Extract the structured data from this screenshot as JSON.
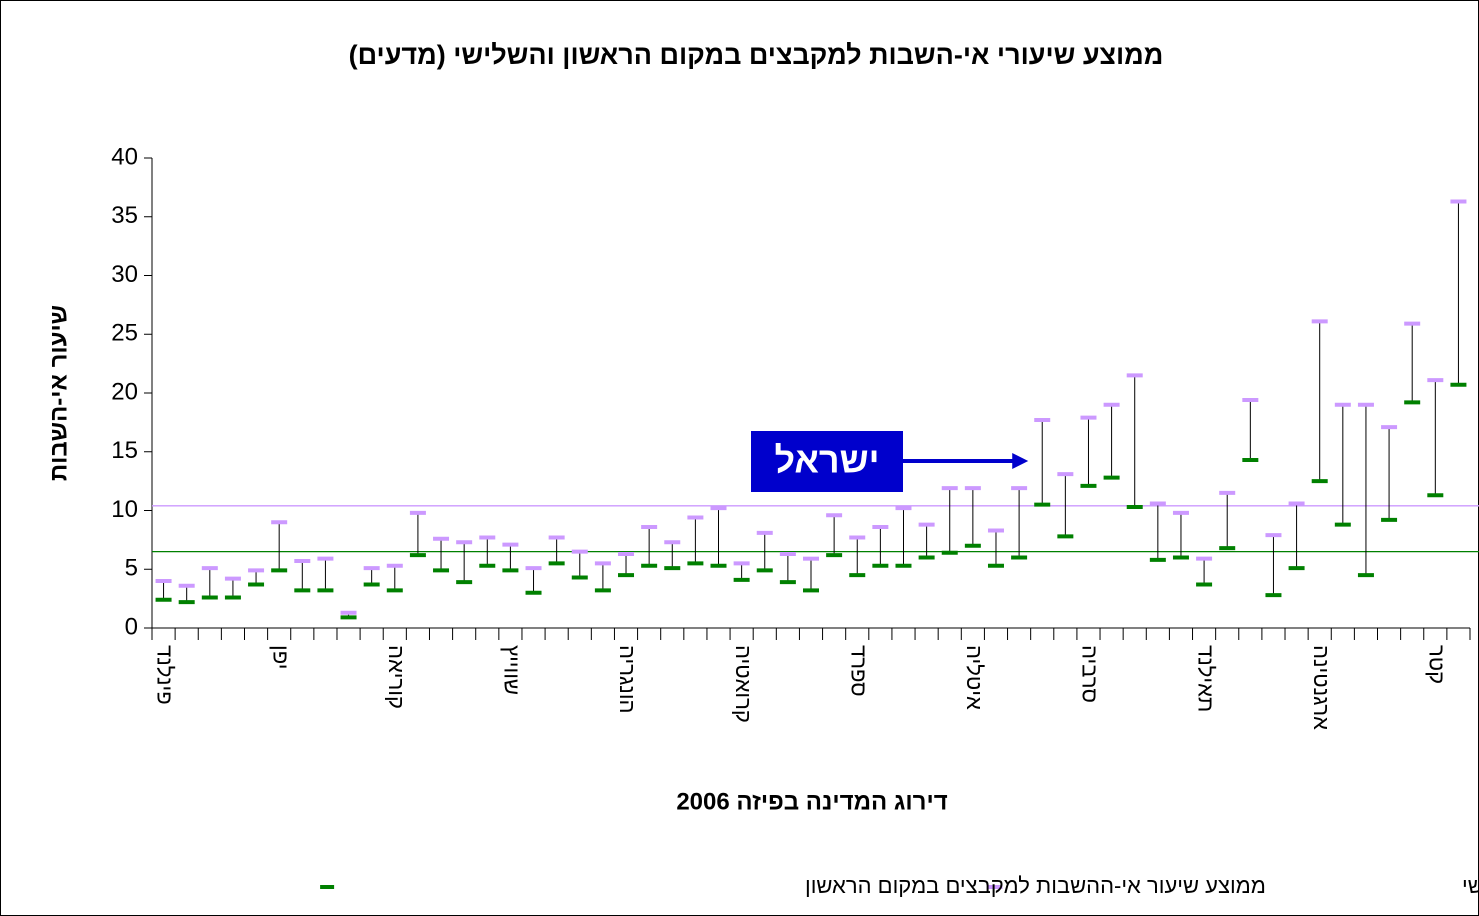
{
  "chart_data": {
    "type": "highlow",
    "title": "ממוצע שיעורי אי-השבות למקבצים במקום הראשון והשלישי (מדעים)",
    "x_label": "דירוג המדינה בפיזה 2006",
    "y_label": "שיעור אי-השבות",
    "annotation": {
      "text": "ישראל",
      "category_index": 38,
      "color": "#0000cc"
    },
    "categories": [
      "פינלנד",
      null,
      null,
      null,
      null,
      "יפן",
      null,
      null,
      null,
      null,
      "קוריאה",
      null,
      null,
      null,
      null,
      "שווייץ",
      null,
      null,
      null,
      null,
      "הונגריה",
      null,
      null,
      null,
      null,
      "קרואטיה",
      null,
      null,
      null,
      null,
      "ספרד",
      null,
      null,
      null,
      null,
      "איטליה",
      null,
      null,
      null,
      null,
      "סרביה",
      null,
      null,
      null,
      null,
      "תאילנד",
      null,
      null,
      null,
      null,
      "ארגנטינה",
      null,
      null,
      null,
      null,
      "קטר",
      null
    ],
    "series": [
      {
        "name": "ממוצע שיעור אי-השבות למקבצים במקום השלישי",
        "color": "#cc99ff",
        "values": [
          4.0,
          3.6,
          5.1,
          4.2,
          4.9,
          9.0,
          5.7,
          5.9,
          1.3,
          5.1,
          5.3,
          9.8,
          7.6,
          7.3,
          7.7,
          7.1,
          5.1,
          7.7,
          6.5,
          5.5,
          6.3,
          8.6,
          7.3,
          9.4,
          10.2,
          5.5,
          8.1,
          6.3,
          5.9,
          9.6,
          7.7,
          8.6,
          10.2,
          8.8,
          11.9,
          11.9,
          8.3,
          11.9,
          17.7,
          13.1,
          17.9,
          19.0,
          21.5,
          10.6,
          9.8,
          5.9,
          11.5,
          19.4,
          7.9,
          10.6,
          26.1,
          19.0,
          19.0,
          17.1,
          25.9,
          21.1,
          36.3
        ]
      },
      {
        "name": "ממוצע שיעור אי-ההשבות למקבצים במקום הראשון",
        "color": "#008000",
        "values": [
          2.4,
          2.2,
          2.6,
          2.6,
          3.7,
          4.9,
          3.2,
          3.2,
          0.9,
          3.7,
          3.2,
          6.2,
          4.9,
          3.9,
          5.3,
          4.9,
          3.0,
          5.5,
          4.3,
          3.2,
          4.5,
          5.3,
          5.1,
          5.5,
          5.3,
          4.1,
          4.9,
          3.9,
          3.2,
          6.2,
          4.5,
          5.3,
          5.3,
          6.0,
          6.4,
          7.0,
          5.3,
          6.0,
          10.5,
          7.8,
          12.1,
          12.8,
          10.3,
          5.8,
          6.0,
          3.7,
          6.8,
          14.3,
          2.8,
          5.1,
          12.5,
          8.8,
          4.5,
          9.2,
          19.2,
          11.3,
          20.7
        ]
      }
    ],
    "reference_lines": [
      {
        "value": 10.4,
        "color": "#cc99ff"
      },
      {
        "value": 6.5,
        "color": "#008000"
      }
    ],
    "ylim": [
      0,
      40
    ],
    "yticks": [
      0,
      5,
      10,
      15,
      20,
      25,
      30,
      35,
      40
    ]
  }
}
